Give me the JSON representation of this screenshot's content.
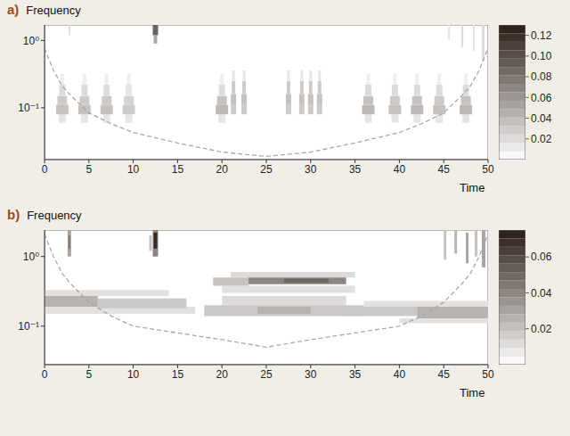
{
  "chart_data": [
    {
      "type": "heatmap",
      "title": "a)",
      "ylabel": "Frequency",
      "xlabel": "Time",
      "log": "y",
      "xlim": [
        0,
        50
      ],
      "xticks": [
        0,
        5,
        10,
        15,
        20,
        25,
        30,
        35,
        40,
        45,
        50
      ],
      "ylim": [
        0.017,
        1.7
      ],
      "yticks": [
        {
          "value": 1,
          "label": "10⁰"
        },
        {
          "value": 0.1,
          "label": "10⁻¹"
        }
      ],
      "cells": [
        [
          1.6,
          2.4,
          0.06,
          0.08,
          0.015
        ],
        [
          1.3,
          2.7,
          0.08,
          0.11,
          0.035
        ],
        [
          1.45,
          2.55,
          0.11,
          0.15,
          0.03
        ],
        [
          1.65,
          2.35,
          0.15,
          0.22,
          0.02
        ],
        [
          1.8,
          2.2,
          0.22,
          0.32,
          0.01
        ],
        [
          4.1,
          4.9,
          0.06,
          0.08,
          0.015
        ],
        [
          3.8,
          5.2,
          0.08,
          0.11,
          0.035
        ],
        [
          3.95,
          5.05,
          0.11,
          0.15,
          0.03
        ],
        [
          4.15,
          4.85,
          0.15,
          0.22,
          0.02
        ],
        [
          4.3,
          4.7,
          0.22,
          0.32,
          0.01
        ],
        [
          6.6,
          7.4,
          0.06,
          0.08,
          0.015
        ],
        [
          6.3,
          7.7,
          0.08,
          0.11,
          0.035
        ],
        [
          6.45,
          7.55,
          0.11,
          0.15,
          0.03
        ],
        [
          6.65,
          7.35,
          0.15,
          0.22,
          0.02
        ],
        [
          6.8,
          7.2,
          0.22,
          0.32,
          0.01
        ],
        [
          9.1,
          9.9,
          0.06,
          0.08,
          0.015
        ],
        [
          8.8,
          10.2,
          0.08,
          0.11,
          0.03
        ],
        [
          8.95,
          10.05,
          0.11,
          0.15,
          0.025
        ],
        [
          9.15,
          9.85,
          0.15,
          0.22,
          0.015
        ],
        [
          9.3,
          9.7,
          0.22,
          0.32,
          0.01
        ],
        [
          19.6,
          20.4,
          0.06,
          0.08,
          0.015
        ],
        [
          19.3,
          20.7,
          0.08,
          0.11,
          0.04
        ],
        [
          19.45,
          20.55,
          0.11,
          0.15,
          0.035
        ],
        [
          19.65,
          20.35,
          0.15,
          0.22,
          0.02
        ],
        [
          19.8,
          20.2,
          0.22,
          0.32,
          0.01
        ],
        [
          21,
          21.6,
          0.08,
          0.11,
          0.03
        ],
        [
          21,
          21.6,
          0.11,
          0.16,
          0.035
        ],
        [
          21.1,
          21.5,
          0.16,
          0.25,
          0.03
        ],
        [
          21.15,
          21.45,
          0.25,
          0.36,
          0.015
        ],
        [
          22.2,
          22.8,
          0.08,
          0.11,
          0.03
        ],
        [
          22.2,
          22.8,
          0.11,
          0.16,
          0.035
        ],
        [
          22.3,
          22.7,
          0.16,
          0.25,
          0.03
        ],
        [
          22.35,
          22.65,
          0.25,
          0.36,
          0.015
        ],
        [
          27.2,
          27.8,
          0.08,
          0.11,
          0.03
        ],
        [
          27.2,
          27.8,
          0.11,
          0.16,
          0.035
        ],
        [
          27.3,
          27.7,
          0.16,
          0.25,
          0.03
        ],
        [
          27.35,
          27.65,
          0.25,
          0.36,
          0.015
        ],
        [
          28.7,
          29.3,
          0.08,
          0.11,
          0.03
        ],
        [
          28.7,
          29.3,
          0.11,
          0.16,
          0.035
        ],
        [
          28.8,
          29.2,
          0.16,
          0.25,
          0.03
        ],
        [
          28.85,
          29.15,
          0.25,
          0.36,
          0.015
        ],
        [
          29.7,
          30.3,
          0.08,
          0.11,
          0.03
        ],
        [
          29.7,
          30.3,
          0.11,
          0.16,
          0.035
        ],
        [
          29.8,
          30.2,
          0.16,
          0.25,
          0.03
        ],
        [
          29.85,
          30.15,
          0.25,
          0.36,
          0.015
        ],
        [
          30.7,
          31.3,
          0.08,
          0.11,
          0.03
        ],
        [
          30.7,
          31.3,
          0.11,
          0.16,
          0.035
        ],
        [
          30.8,
          31.2,
          0.16,
          0.25,
          0.03
        ],
        [
          30.85,
          31.15,
          0.25,
          0.36,
          0.015
        ],
        [
          36.1,
          36.9,
          0.06,
          0.08,
          0.015
        ],
        [
          35.8,
          37.2,
          0.08,
          0.11,
          0.04
        ],
        [
          35.95,
          37.05,
          0.11,
          0.15,
          0.035
        ],
        [
          36.15,
          36.85,
          0.15,
          0.22,
          0.02
        ],
        [
          36.3,
          36.7,
          0.22,
          0.32,
          0.01
        ],
        [
          39.1,
          39.9,
          0.06,
          0.08,
          0.015
        ],
        [
          38.8,
          40.2,
          0.08,
          0.11,
          0.035
        ],
        [
          38.95,
          40.05,
          0.11,
          0.15,
          0.03
        ],
        [
          39.15,
          39.85,
          0.15,
          0.22,
          0.02
        ],
        [
          39.3,
          39.7,
          0.22,
          0.32,
          0.01
        ],
        [
          41.6,
          42.4,
          0.06,
          0.08,
          0.015
        ],
        [
          41.3,
          42.7,
          0.08,
          0.11,
          0.04
        ],
        [
          41.45,
          42.55,
          0.11,
          0.15,
          0.035
        ],
        [
          41.65,
          42.35,
          0.15,
          0.22,
          0.02
        ],
        [
          41.8,
          42.2,
          0.22,
          0.32,
          0.01
        ],
        [
          44.1,
          44.9,
          0.06,
          0.08,
          0.015
        ],
        [
          43.8,
          45.2,
          0.08,
          0.11,
          0.035
        ],
        [
          43.95,
          45.05,
          0.11,
          0.15,
          0.03
        ],
        [
          44.15,
          44.85,
          0.15,
          0.22,
          0.02
        ],
        [
          44.3,
          44.7,
          0.22,
          0.32,
          0.01
        ],
        [
          47.1,
          47.9,
          0.06,
          0.08,
          0.015
        ],
        [
          46.8,
          48.2,
          0.08,
          0.11,
          0.04
        ],
        [
          46.95,
          48.05,
          0.11,
          0.15,
          0.035
        ],
        [
          47.15,
          47.85,
          0.15,
          0.22,
          0.02
        ],
        [
          47.3,
          47.7,
          0.22,
          0.32,
          0.01
        ],
        [
          12.3,
          12.7,
          0.9,
          1.2,
          0.05
        ],
        [
          12.2,
          12.8,
          1.2,
          1.7,
          0.09
        ],
        [
          2.7,
          2.9,
          1.2,
          1.7,
          0.02
        ],
        [
          45.5,
          45.7,
          1.0,
          1.7,
          0.015
        ],
        [
          47,
          47.2,
          0.8,
          1.7,
          0.02
        ],
        [
          48.3,
          48.5,
          0.7,
          1.7,
          0.015
        ],
        [
          49.3,
          49.6,
          0.5,
          1.7,
          0.02
        ]
      ],
      "colorbar": {
        "range": [
          0,
          0.13
        ],
        "ticks": [
          0.02,
          0.04,
          0.06,
          0.08,
          {
            "value": 0.1,
            "label": "0.10"
          },
          0.12
        ]
      },
      "series": [
        {
          "type": "line",
          "line_style": "dashed",
          "color": "#a8a8a8",
          "x": [
            0,
            1,
            2,
            3,
            5,
            7.5,
            10,
            15,
            20,
            25,
            30,
            35,
            40,
            42.5,
            45,
            47,
            48,
            49,
            50
          ],
          "values": [
            0.77,
            0.36,
            0.21,
            0.15,
            0.084,
            0.058,
            0.043,
            0.03,
            0.022,
            0.019,
            0.022,
            0.03,
            0.043,
            0.058,
            0.084,
            0.15,
            0.21,
            0.36,
            0.77
          ]
        }
      ]
    },
    {
      "type": "heatmap",
      "title": "b)",
      "ylabel": "Frequency",
      "xlabel": "Time",
      "log": "y",
      "xlim": [
        0,
        50
      ],
      "xticks": [
        0,
        5,
        10,
        15,
        20,
        25,
        30,
        35,
        40,
        45,
        50
      ],
      "ylim": [
        0.028,
        2.4
      ],
      "yticks": [
        {
          "value": 1,
          "label": "10⁰"
        },
        {
          "value": 0.1,
          "label": "10⁻¹"
        }
      ],
      "cells": [
        [
          0,
          14,
          0.27,
          0.33,
          0.01
        ],
        [
          0,
          17,
          0.15,
          0.19,
          0.01
        ],
        [
          6,
          16,
          0.18,
          0.25,
          0.018
        ],
        [
          0,
          6,
          0.19,
          0.27,
          0.025
        ],
        [
          36,
          50,
          0.19,
          0.23,
          0.01
        ],
        [
          40,
          50,
          0.11,
          0.13,
          0.01
        ],
        [
          33,
          42,
          0.14,
          0.19,
          0.018
        ],
        [
          42,
          50,
          0.13,
          0.19,
          0.025
        ],
        [
          20,
          35,
          0.3,
          0.38,
          0.01
        ],
        [
          21,
          35,
          0.5,
          0.6,
          0.012
        ],
        [
          19,
          23,
          0.38,
          0.5,
          0.02
        ],
        [
          23,
          34,
          0.4,
          0.5,
          0.04
        ],
        [
          27,
          32,
          0.42,
          0.48,
          0.05
        ],
        [
          18,
          36,
          0.14,
          0.2,
          0.018
        ],
        [
          20,
          34,
          0.2,
          0.27,
          0.012
        ],
        [
          24,
          30,
          0.15,
          0.19,
          0.025
        ],
        [
          2.6,
          3,
          1.0,
          2.4,
          0.03
        ],
        [
          2.7,
          2.9,
          1.3,
          2.0,
          0.045
        ],
        [
          12.2,
          12.8,
          1.0,
          2.4,
          0.04
        ],
        [
          12.3,
          12.7,
          1.3,
          2.2,
          0.07
        ],
        [
          11.8,
          12.1,
          1.2,
          2.0,
          0.02
        ],
        [
          45,
          45.3,
          0.9,
          2.4,
          0.02
        ],
        [
          46.2,
          46.5,
          1.1,
          2.4,
          0.025
        ],
        [
          47.5,
          47.8,
          0.8,
          2.2,
          0.03
        ],
        [
          48.5,
          48.8,
          1.0,
          2.4,
          0.02
        ],
        [
          49.3,
          49.7,
          0.7,
          2.4,
          0.03
        ]
      ],
      "colorbar": {
        "range": [
          0,
          0.075
        ],
        "ticks": [
          0.02,
          0.04,
          0.06
        ]
      },
      "series": [
        {
          "type": "line",
          "line_style": "dashed",
          "color": "#a8a8a8",
          "x": [
            0,
            1,
            2,
            3,
            5,
            7.5,
            10,
            15,
            20,
            25,
            30,
            35,
            40,
            42.5,
            45,
            47,
            48,
            49,
            50
          ],
          "values": [
            2.1,
            1.0,
            0.57,
            0.4,
            0.22,
            0.14,
            0.1,
            0.08,
            0.064,
            0.05,
            0.064,
            0.08,
            0.1,
            0.14,
            0.22,
            0.4,
            0.57,
            1.0,
            2.1
          ]
        }
      ]
    }
  ]
}
